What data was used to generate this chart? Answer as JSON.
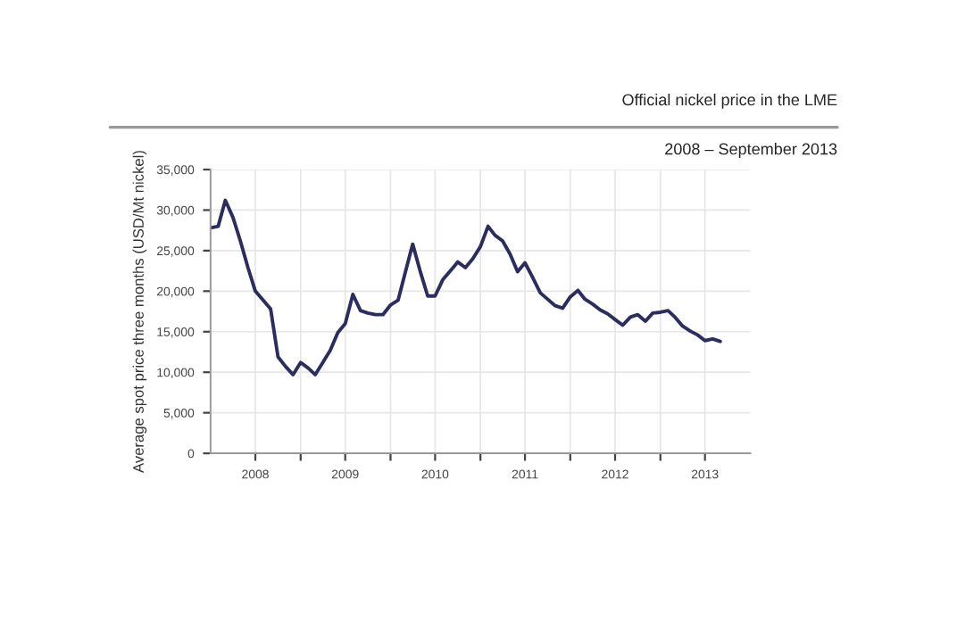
{
  "chart_data": {
    "type": "line",
    "title": "Official nickel price in the LME",
    "subtitle": "2008 – September 2013",
    "ylabel": "Average spot price three months (USD/Mt nickel)",
    "x": [
      "2008-01",
      "2008-02",
      "2008-03",
      "2008-04",
      "2008-05",
      "2008-06",
      "2008-07",
      "2008-08",
      "2008-09",
      "2008-10",
      "2008-11",
      "2008-12",
      "2009-01",
      "2009-02",
      "2009-03",
      "2009-04",
      "2009-05",
      "2009-06",
      "2009-07",
      "2009-08",
      "2009-09",
      "2009-10",
      "2009-11",
      "2009-12",
      "2010-01",
      "2010-02",
      "2010-03",
      "2010-04",
      "2010-05",
      "2010-06",
      "2010-07",
      "2010-08",
      "2010-09",
      "2010-10",
      "2010-11",
      "2010-12",
      "2011-01",
      "2011-02",
      "2011-03",
      "2011-04",
      "2011-05",
      "2011-06",
      "2011-07",
      "2011-08",
      "2011-09",
      "2011-10",
      "2011-11",
      "2011-12",
      "2012-01",
      "2012-02",
      "2012-03",
      "2012-04",
      "2012-05",
      "2012-06",
      "2012-07",
      "2012-08",
      "2012-09",
      "2012-10",
      "2012-11",
      "2012-12",
      "2013-01",
      "2013-02",
      "2013-03",
      "2013-04",
      "2013-05",
      "2013-06",
      "2013-07",
      "2013-08",
      "2013-09"
    ],
    "series": [
      {
        "color": "#2b2d5e",
        "values": [
          27800,
          28000,
          31200,
          29100,
          26200,
          22900,
          20000,
          18900,
          17800,
          11900,
          10700,
          9700,
          11200,
          10500,
          9700,
          11200,
          12700,
          14900,
          16000,
          19600,
          17600,
          17300,
          17100,
          17100,
          18300,
          18900,
          22200,
          25800,
          22500,
          19400,
          19400,
          21400,
          22500,
          23600,
          22900,
          24000,
          25500,
          28000,
          26900,
          26200,
          24600,
          22400,
          23500,
          21700,
          19800,
          19000,
          18200,
          17900,
          19300,
          20100,
          19000,
          18400,
          17700,
          17200,
          16500,
          15800,
          16800,
          17100,
          16300,
          17300,
          17400,
          17600,
          16800,
          15700,
          15100,
          14600,
          13900,
          14100,
          13800
        ]
      }
    ],
    "xlim": [
      "2008-01-01",
      "2014-01-01"
    ],
    "xticks": [
      {
        "value": "2008-07-01",
        "label": "2008"
      },
      {
        "value": "2009-01-01",
        "label": null
      },
      {
        "value": "2009-07-01",
        "label": "2009"
      },
      {
        "value": "2010-01-01",
        "label": null
      },
      {
        "value": "2010-07-01",
        "label": "2010"
      },
      {
        "value": "2011-01-01",
        "label": null
      },
      {
        "value": "2011-07-01",
        "label": "2011"
      },
      {
        "value": "2012-01-01",
        "label": null
      },
      {
        "value": "2012-07-01",
        "label": "2012"
      },
      {
        "value": "2013-01-01",
        "label": null
      },
      {
        "value": "2013-07-01",
        "label": "2013"
      }
    ],
    "ylim": [
      0,
      35000
    ],
    "yticks": [
      {
        "value": 0,
        "label": "0"
      },
      {
        "value": 5000,
        "label": "5,000"
      },
      {
        "value": 10000,
        "label": "10,000"
      },
      {
        "value": 15000,
        "label": "15,000"
      },
      {
        "value": 20000,
        "label": "20,000"
      },
      {
        "value": 25000,
        "label": "25,000"
      },
      {
        "value": 30000,
        "label": "30,000"
      },
      {
        "value": 35000,
        "label": "35,000"
      }
    ],
    "grid": true,
    "marker": "none",
    "line_style": "solid"
  }
}
